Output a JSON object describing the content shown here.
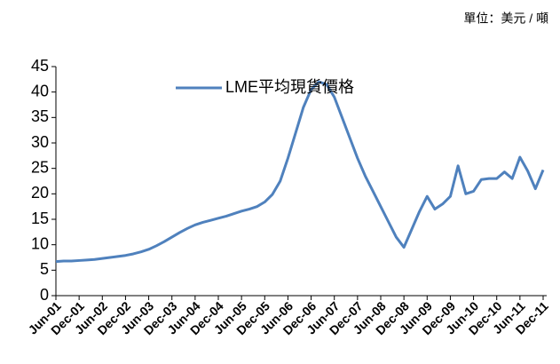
{
  "chart_data": {
    "type": "line",
    "note": "單位：美元 / 噸",
    "categories": [
      "Jun-01",
      null,
      null,
      "Dec-01",
      null,
      null,
      "Jun-02",
      null,
      null,
      "Dec-02",
      null,
      null,
      "Jun-03",
      null,
      null,
      "Dec-03",
      null,
      null,
      "Jun-04",
      null,
      null,
      "Dec-04",
      null,
      null,
      "Jun-05",
      null,
      null,
      "Dec-05",
      null,
      null,
      "Jun-06",
      null,
      null,
      "Dec-06",
      null,
      null,
      "Jun-07",
      null,
      null,
      "Dec-07",
      null,
      null,
      "Jun-08",
      null,
      null,
      "Dec-08",
      null,
      null,
      "Jun-09",
      null,
      null,
      "Dec-09",
      null,
      null,
      "Jun-10",
      null,
      null,
      "Dec-10",
      null,
      null,
      "Jun-11",
      null,
      null,
      "Dec-11"
    ],
    "series": [
      {
        "name": "LME平均現貨價格",
        "color": "#4f81bd",
        "values": [
          6.7,
          6.8,
          6.8,
          6.9,
          7.0,
          7.1,
          7.3,
          7.5,
          7.7,
          7.9,
          8.2,
          8.6,
          9.1,
          9.8,
          10.6,
          11.5,
          12.4,
          13.2,
          13.9,
          14.4,
          14.8,
          15.2,
          15.6,
          16.1,
          16.6,
          17.0,
          17.5,
          18.4,
          19.9,
          22.5,
          27,
          32,
          37,
          40.5,
          42,
          41.5,
          39,
          35,
          31,
          27,
          23.5,
          20.5,
          17.5,
          14.5,
          11.5,
          9.5,
          13,
          16.5,
          19.5,
          17,
          18,
          19.5,
          25.5,
          20,
          20.5,
          22.8,
          23,
          23,
          24.3,
          23,
          27.2,
          24.5,
          21,
          24.7
        ]
      }
    ],
    "ylim": [
      0,
      45
    ],
    "yticks": [
      0,
      5,
      10,
      15,
      20,
      25,
      30,
      35,
      40,
      45
    ],
    "grid": false
  }
}
